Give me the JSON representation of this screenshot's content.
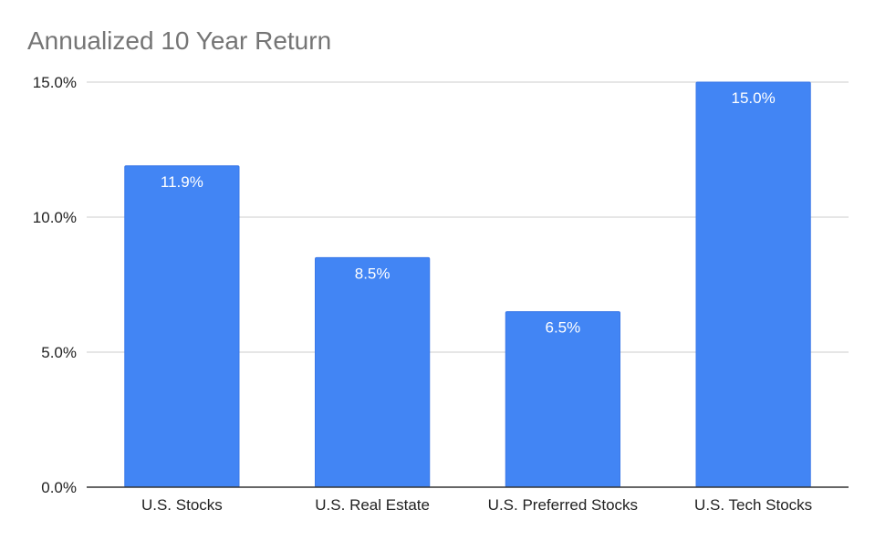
{
  "chart_data": {
    "type": "bar",
    "title": "Annualized 10 Year Return",
    "xlabel": "",
    "ylabel": "",
    "categories": [
      "U.S. Stocks",
      "U.S. Real Estate",
      "U.S. Preferred Stocks",
      "U.S. Tech Stocks"
    ],
    "values": [
      11.9,
      8.5,
      6.5,
      15.0
    ],
    "data_labels": [
      "11.9%",
      "8.5%",
      "6.5%",
      "15.0%"
    ],
    "ylim": [
      0,
      15
    ],
    "y_ticks": [
      0,
      5,
      10,
      15
    ],
    "y_tick_labels": [
      "0.0%",
      "5.0%",
      "10.0%",
      "15.0%"
    ],
    "grid": true,
    "legend": "none",
    "colors": {
      "bar": "#4285f4",
      "bar_edge": "#3b78e7"
    }
  }
}
